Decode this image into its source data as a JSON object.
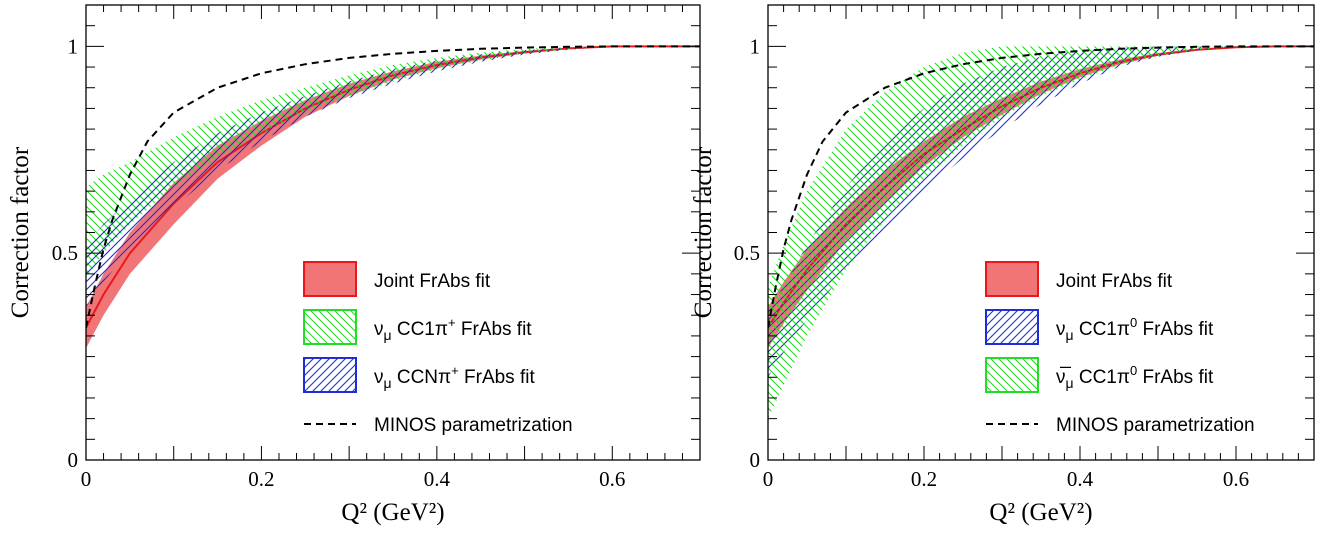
{
  "chart_data": [
    {
      "type": "area",
      "xlabel": "Q² (GeV²)",
      "ylabel": "Correction factor",
      "xlim": [
        0,
        0.7
      ],
      "ylim": [
        0,
        1.1
      ],
      "x_ticks": [
        0,
        0.2,
        0.4,
        0.6
      ],
      "x_tick_labels": [
        "0",
        "0.2",
        "0.4",
        "0.6"
      ],
      "y_ticks": [
        0,
        0.5,
        1
      ],
      "y_tick_labels": [
        "0",
        "0.5",
        "1"
      ],
      "legend_position": "bottom-right",
      "series": [
        {
          "name": "Joint FrAbs fit",
          "style": "filled band",
          "color": "#e8191c",
          "x": [
            0,
            0.02,
            0.05,
            0.1,
            0.15,
            0.2,
            0.25,
            0.3,
            0.35,
            0.4,
            0.45,
            0.5,
            0.55,
            0.6,
            0.65,
            0.7
          ],
          "central": [
            0.32,
            0.4,
            0.5,
            0.62,
            0.72,
            0.79,
            0.85,
            0.895,
            0.93,
            0.955,
            0.973,
            0.986,
            0.995,
            1.0,
            1.0,
            1.0
          ],
          "upper": [
            0.37,
            0.45,
            0.55,
            0.67,
            0.76,
            0.82,
            0.87,
            0.91,
            0.94,
            0.963,
            0.978,
            0.989,
            0.996,
            1.0,
            1.0,
            1.0
          ],
          "lower": [
            0.27,
            0.35,
            0.45,
            0.57,
            0.68,
            0.76,
            0.83,
            0.88,
            0.92,
            0.947,
            0.968,
            0.983,
            0.994,
            1.0,
            1.0,
            1.0
          ]
        },
        {
          "name": "νμ CC1π⁺ FrAbs fit",
          "label_main": "ν",
          "label_sub": "μ",
          "label_text": " CC1π",
          "label_sup": "+",
          "label_tail": " FrAbs fit",
          "style": "hatched band",
          "color": "#22dd22",
          "hatch": "\\",
          "x": [
            0,
            0.02,
            0.05,
            0.1,
            0.15,
            0.2,
            0.25,
            0.3,
            0.35,
            0.4,
            0.45,
            0.5,
            0.55,
            0.6,
            0.65,
            0.7
          ],
          "upper": [
            0.66,
            0.69,
            0.72,
            0.78,
            0.83,
            0.87,
            0.9,
            0.93,
            0.955,
            0.972,
            0.985,
            0.994,
            0.998,
            1.0,
            1.0,
            1.0
          ],
          "lower": [
            0.44,
            0.5,
            0.57,
            0.66,
            0.73,
            0.79,
            0.84,
            0.88,
            0.915,
            0.945,
            0.966,
            0.982,
            0.993,
            1.0,
            1.0,
            1.0
          ]
        },
        {
          "name": "νμ CCNπ⁺ FrAbs fit",
          "label_main": "ν",
          "label_sub": "μ",
          "label_text": " CCNπ",
          "label_sup": "+",
          "label_tail": " FrAbs fit",
          "style": "hatched band",
          "color": "#1c2fd6",
          "hatch": "/",
          "x": [
            0,
            0.02,
            0.05,
            0.1,
            0.15,
            0.2,
            0.25,
            0.3,
            0.35,
            0.4,
            0.45,
            0.5,
            0.55,
            0.6,
            0.65,
            0.7
          ],
          "upper": [
            0.52,
            0.57,
            0.63,
            0.72,
            0.79,
            0.84,
            0.88,
            0.915,
            0.945,
            0.966,
            0.981,
            0.991,
            0.997,
            1.0,
            1.0,
            1.0
          ],
          "lower": [
            0.37,
            0.43,
            0.51,
            0.61,
            0.7,
            0.77,
            0.83,
            0.875,
            0.91,
            0.94,
            0.963,
            0.98,
            0.992,
            1.0,
            1.0,
            1.0
          ]
        },
        {
          "name": "MINOS parametrization",
          "style": "dashed line",
          "color": "#000000",
          "x": [
            0,
            0.01,
            0.02,
            0.03,
            0.05,
            0.07,
            0.1,
            0.15,
            0.2,
            0.25,
            0.3,
            0.35,
            0.4,
            0.45,
            0.5,
            0.55,
            0.6,
            0.65,
            0.7
          ],
          "y": [
            0.32,
            0.42,
            0.51,
            0.58,
            0.69,
            0.77,
            0.84,
            0.9,
            0.935,
            0.957,
            0.972,
            0.982,
            0.989,
            0.994,
            0.997,
            0.999,
            1.0,
            1.0,
            1.0
          ]
        }
      ]
    },
    {
      "type": "area",
      "xlabel": "Q² (GeV²)",
      "ylabel": "Correction factor",
      "xlim": [
        0,
        0.7
      ],
      "ylim": [
        0,
        1.1
      ],
      "x_ticks": [
        0,
        0.2,
        0.4,
        0.6
      ],
      "x_tick_labels": [
        "0",
        "0.2",
        "0.4",
        "0.6"
      ],
      "y_ticks": [
        0,
        0.5,
        1
      ],
      "y_tick_labels": [
        "0",
        "0.5",
        "1"
      ],
      "legend_position": "bottom-right",
      "series": [
        {
          "name": "Joint FrAbs fit",
          "style": "filled band",
          "color": "#e8191c",
          "x": [
            0,
            0.02,
            0.05,
            0.1,
            0.15,
            0.2,
            0.25,
            0.3,
            0.35,
            0.4,
            0.45,
            0.5,
            0.55,
            0.6,
            0.65,
            0.7
          ],
          "central": [
            0.32,
            0.38,
            0.46,
            0.57,
            0.66,
            0.74,
            0.8,
            0.855,
            0.9,
            0.935,
            0.962,
            0.98,
            0.992,
            0.998,
            1.0,
            1.0
          ],
          "upper": [
            0.37,
            0.43,
            0.51,
            0.61,
            0.7,
            0.77,
            0.83,
            0.875,
            0.915,
            0.945,
            0.968,
            0.984,
            0.994,
            0.999,
            1.0,
            1.0
          ],
          "lower": [
            0.27,
            0.33,
            0.41,
            0.53,
            0.62,
            0.71,
            0.78,
            0.835,
            0.885,
            0.925,
            0.956,
            0.977,
            0.99,
            0.998,
            1.0,
            1.0
          ]
        },
        {
          "name": "νμ CC1π⁰ FrAbs fit",
          "label_main": "ν",
          "label_sub": "μ",
          "label_text": " CC1π",
          "label_sup": "0",
          "label_tail": " FrAbs fit",
          "style": "hatched band",
          "color": "#1c2fd6",
          "hatch": "/",
          "x": [
            0,
            0.02,
            0.05,
            0.1,
            0.15,
            0.2,
            0.25,
            0.3,
            0.35,
            0.4,
            0.45,
            0.5,
            0.55,
            0.6,
            0.65,
            0.7
          ],
          "upper": [
            0.36,
            0.42,
            0.52,
            0.66,
            0.77,
            0.85,
            0.91,
            0.95,
            0.975,
            0.99,
            0.997,
            1.0,
            1.0,
            1.0,
            1.0,
            1.0
          ],
          "lower": [
            0.2,
            0.26,
            0.34,
            0.46,
            0.56,
            0.65,
            0.73,
            0.8,
            0.86,
            0.91,
            0.95,
            0.975,
            0.99,
            0.998,
            1.0,
            1.0
          ]
        },
        {
          "name": "ν̅μ CC1π⁰ FrAbs fit",
          "label_main": "ν̅",
          "label_sub": "μ",
          "label_text": " CC1π",
          "label_sup": "0",
          "label_tail": " FrAbs fit",
          "style": "hatched band",
          "color": "#22dd22",
          "hatch": "\\",
          "x": [
            0,
            0.02,
            0.05,
            0.1,
            0.15,
            0.2,
            0.25,
            0.3,
            0.35,
            0.4,
            0.45,
            0.5,
            0.55,
            0.6,
            0.65,
            0.7
          ],
          "upper": [
            0.42,
            0.52,
            0.65,
            0.8,
            0.89,
            0.95,
            0.985,
            1.0,
            1.0,
            1.0,
            1.0,
            1.0,
            1.0,
            1.0,
            1.0,
            1.0
          ],
          "lower": [
            0.1,
            0.18,
            0.3,
            0.46,
            0.58,
            0.68,
            0.76,
            0.83,
            0.88,
            0.92,
            0.955,
            0.978,
            0.992,
            0.998,
            1.0,
            1.0
          ]
        },
        {
          "name": "MINOS parametrization",
          "style": "dashed line",
          "color": "#000000",
          "x": [
            0,
            0.01,
            0.02,
            0.03,
            0.05,
            0.07,
            0.1,
            0.15,
            0.2,
            0.25,
            0.3,
            0.35,
            0.4,
            0.45,
            0.5,
            0.55,
            0.6,
            0.65,
            0.7
          ],
          "y": [
            0.32,
            0.42,
            0.51,
            0.58,
            0.69,
            0.77,
            0.84,
            0.9,
            0.935,
            0.957,
            0.972,
            0.982,
            0.989,
            0.994,
            0.997,
            0.999,
            1.0,
            1.0,
            1.0
          ]
        }
      ]
    }
  ]
}
